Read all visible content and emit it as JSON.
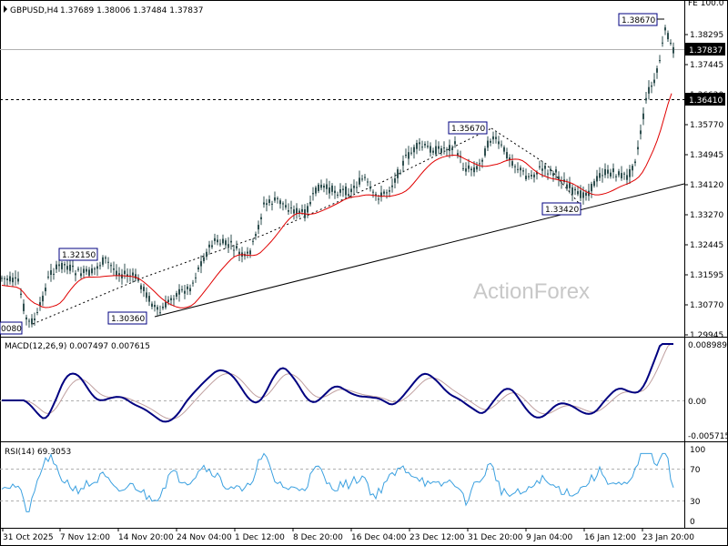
{
  "header": {
    "symbol": "GBPUSD,H4",
    "ohlc": "1.37689 1.38006 1.37484 1.37837",
    "corner": "FE 100.0"
  },
  "watermark": "ActionForex",
  "colors": {
    "candle": "#2f4f4f",
    "ma": "#e00000",
    "macd": "#000080",
    "signal": "#c0a0a0",
    "rsi": "#3aa0e0",
    "grid": "#b0b0b0",
    "trend": "#000000",
    "box_border": "#000080"
  },
  "price_axis": {
    "ticks": [
      "1.38295",
      "1.37445",
      "1.36620",
      "1.35770",
      "1.34945",
      "1.34120",
      "1.33270",
      "1.32445",
      "1.31595",
      "1.30770",
      "1.29945"
    ],
    "current_price": "1.37837",
    "level_line": "1.36410"
  },
  "annotations": [
    {
      "name": "high-1-38670",
      "text": "1.38670"
    },
    {
      "name": "high-1-35670",
      "text": "1.35670"
    },
    {
      "name": "low-1-33420",
      "text": "1.33420"
    },
    {
      "name": "high-1-32150",
      "text": "1.32150"
    },
    {
      "name": "low-1-30360",
      "text": "1.30360"
    },
    {
      "name": "low-edge",
      "text": "0080"
    }
  ],
  "macd": {
    "label": "MACD(12,26,9) 0.007497 0.007615",
    "ticks": [
      "0.008989",
      "0.00",
      "-0.005715"
    ]
  },
  "rsi": {
    "label": "RSI(14) 69.3053",
    "ticks": [
      "100",
      "70",
      "30",
      "0"
    ]
  },
  "time_axis": [
    "31 Oct 2025",
    "7 Nov 12:00",
    "14 Nov 20:00",
    "24 Nov 04:00",
    "1 Dec 12:00",
    "8 Dec 20:00",
    "16 Dec 04:00",
    "23 Dec 12:00",
    "31 Dec 20:00",
    "9 Jan 04:00",
    "16 Jan 12:00",
    "23 Jan 20:00"
  ]
}
